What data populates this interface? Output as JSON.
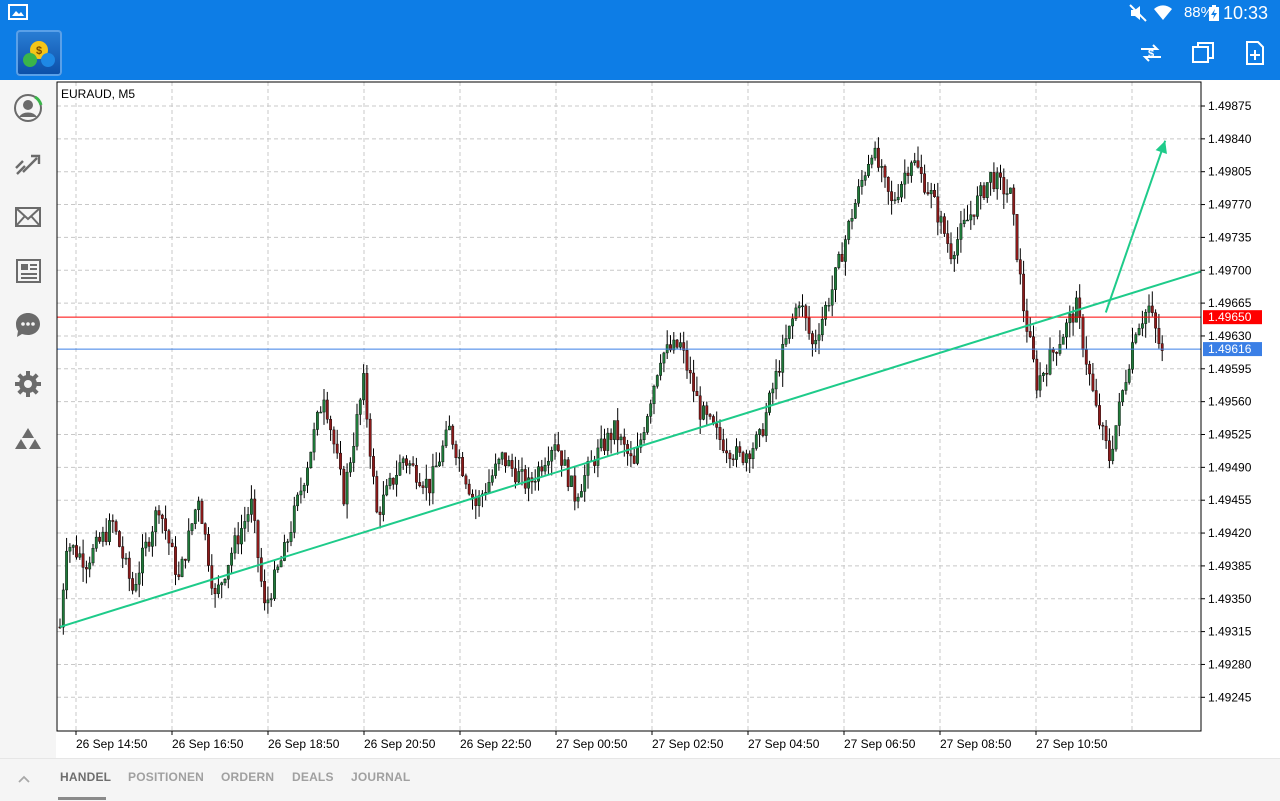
{
  "status_bar": {
    "battery": "88%",
    "time": "10:33",
    "icons": [
      "gallery-icon",
      "mute-icon",
      "wifi-icon",
      "battery-icon"
    ]
  },
  "app_bar": {
    "logo": "metatrader-logo",
    "actions": [
      "currency-exchange-icon",
      "windows-icon",
      "new-order-icon"
    ]
  },
  "sidebar": {
    "items": [
      "account-icon",
      "trade-icon",
      "mail-icon",
      "news-icon",
      "chat-icon",
      "settings-icon",
      "community-icon"
    ]
  },
  "chart_data": {
    "type": "candlestick",
    "title": "EURAUD, M5",
    "y_ticks": [
      "1.49875",
      "1.49840",
      "1.49805",
      "1.49770",
      "1.49735",
      "1.49700",
      "1.49665",
      "1.49630",
      "1.49595",
      "1.49560",
      "1.49525",
      "1.49490",
      "1.49455",
      "1.49420",
      "1.49385",
      "1.49350",
      "1.49315",
      "1.49280",
      "1.49245"
    ],
    "ylim": [
      1.49215,
      1.49898
    ],
    "x_ticks": [
      "26 Sep 14:50",
      "26 Sep 16:50",
      "26 Sep 18:50",
      "26 Sep 20:50",
      "26 Sep 22:50",
      "27 Sep 00:50",
      "27 Sep 02:50",
      "27 Sep 04:50",
      "27 Sep 06:50",
      "27 Sep 08:50",
      "27 Sep 10:50"
    ],
    "grid": true,
    "price_lines": [
      {
        "label": "1.49650",
        "price": 1.4965,
        "color": "#ff0000"
      },
      {
        "label": "1.49616",
        "price": 1.49616,
        "color": "#3a7fe6"
      }
    ],
    "trendline": {
      "color": "#1ecb8a",
      "from": {
        "bar_index": 0,
        "price": 1.4932
      },
      "to": {
        "bar_index": 263,
        "price": 1.49608
      }
    },
    "arrow": {
      "color": "#1ecb8a",
      "from": {
        "bar_index": 226,
        "price": 1.49655
      },
      "to": {
        "bar_index": 244,
        "price": 1.49838
      }
    },
    "waypoints": [
      {
        "i": 0,
        "p": 1.4932
      },
      {
        "i": 2,
        "p": 1.4941
      },
      {
        "i": 8,
        "p": 1.4939
      },
      {
        "i": 16,
        "p": 1.4943
      },
      {
        "i": 22,
        "p": 1.4936
      },
      {
        "i": 30,
        "p": 1.4945
      },
      {
        "i": 36,
        "p": 1.4937
      },
      {
        "i": 42,
        "p": 1.4946
      },
      {
        "i": 47,
        "p": 1.4935
      },
      {
        "i": 52,
        "p": 1.494
      },
      {
        "i": 58,
        "p": 1.4945
      },
      {
        "i": 62,
        "p": 1.4934
      },
      {
        "i": 68,
        "p": 1.494
      },
      {
        "i": 74,
        "p": 1.4948
      },
      {
        "i": 80,
        "p": 1.4957
      },
      {
        "i": 86,
        "p": 1.4946
      },
      {
        "i": 92,
        "p": 1.4958
      },
      {
        "i": 96,
        "p": 1.4944
      },
      {
        "i": 104,
        "p": 1.495
      },
      {
        "i": 112,
        "p": 1.4947
      },
      {
        "i": 118,
        "p": 1.4953
      },
      {
        "i": 126,
        "p": 1.4945
      },
      {
        "i": 134,
        "p": 1.495
      },
      {
        "i": 142,
        "p": 1.4947
      },
      {
        "i": 150,
        "p": 1.4952
      },
      {
        "i": 156,
        "p": 1.4946
      },
      {
        "i": 162,
        "p": 1.495
      },
      {
        "i": 168,
        "p": 1.4953
      },
      {
        "i": 174,
        "p": 1.4949
      },
      {
        "i": 182,
        "p": 1.4961
      },
      {
        "i": 188,
        "p": 1.4962
      },
      {
        "i": 194,
        "p": 1.4955
      },
      {
        "i": 200,
        "p": 1.4952
      },
      {
        "i": 206,
        "p": 1.495
      },
      {
        "i": 212,
        "p": 1.4952
      },
      {
        "i": 218,
        "p": 1.496
      },
      {
        "i": 224,
        "p": 1.4967
      },
      {
        "i": 228,
        "p": 1.4962
      },
      {
        "i": 234,
        "p": 1.4968
      },
      {
        "i": 240,
        "p": 1.4976
      },
      {
        "i": 246,
        "p": 1.4983
      },
      {
        "i": 252,
        "p": 1.4977
      },
      {
        "i": 258,
        "p": 1.4982
      },
      {
        "i": 264,
        "p": 1.4978
      },
      {
        "i": 270,
        "p": 1.4972
      },
      {
        "i": 276,
        "p": 1.4976
      },
      {
        "i": 282,
        "p": 1.498
      },
      {
        "i": 288,
        "p": 1.4978
      },
      {
        "i": 292,
        "p": 1.4966
      },
      {
        "i": 296,
        "p": 1.4958
      },
      {
        "i": 302,
        "p": 1.4962
      },
      {
        "i": 308,
        "p": 1.4966
      },
      {
        "i": 314,
        "p": 1.4955
      },
      {
        "i": 318,
        "p": 1.495
      },
      {
        "i": 322,
        "p": 1.4957
      },
      {
        "i": 326,
        "p": 1.4964
      },
      {
        "i": 330,
        "p": 1.4966
      },
      {
        "i": 334,
        "p": 1.4961
      }
    ]
  },
  "tabs": [
    {
      "label": "HANDEL",
      "active": true
    },
    {
      "label": "POSITIONEN",
      "active": false
    },
    {
      "label": "ORDERN",
      "active": false
    },
    {
      "label": "DEALS",
      "active": false
    },
    {
      "label": "JOURNAL",
      "active": false
    }
  ]
}
